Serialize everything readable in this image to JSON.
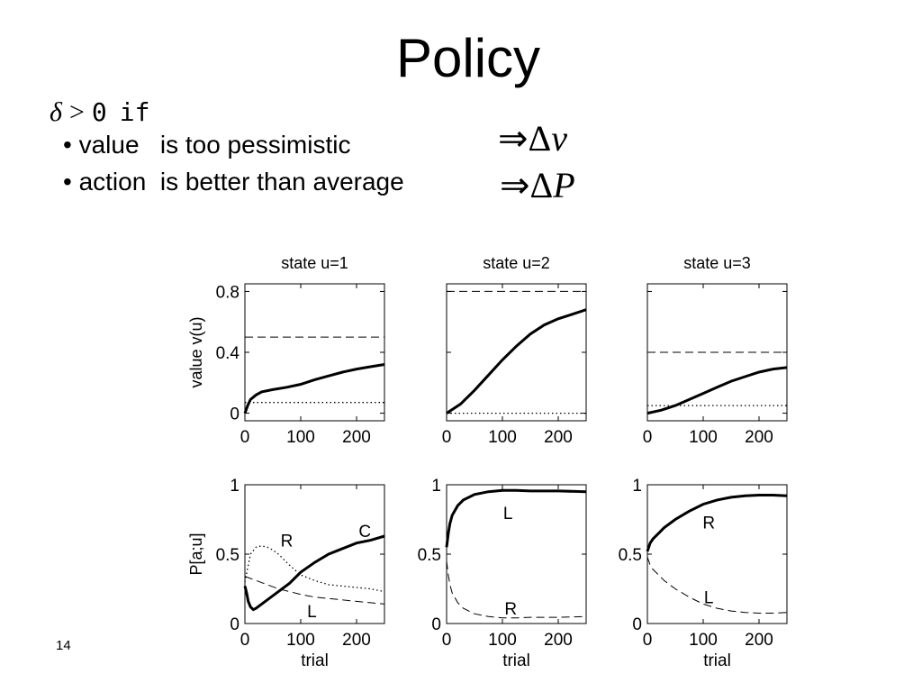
{
  "slide": {
    "title": "Policy",
    "condition": {
      "symbol": "δ",
      "relation": ">",
      "value": "0",
      "word": "if"
    },
    "bullets": [
      {
        "text": "• value   is too pessimistic",
        "implies": "⇒",
        "consequence_delta": "Δ",
        "consequence_var": "v"
      },
      {
        "text": "• action  is better than average",
        "implies": "⇒",
        "consequence_delta": "Δ",
        "consequence_var": "P"
      }
    ],
    "page_number": "14"
  },
  "chart_data": [
    {
      "type": "line",
      "title": "state u=1",
      "xlabel": "",
      "ylabel": "value v(u)",
      "xlim": [
        0,
        250
      ],
      "ylim": [
        -0.05,
        0.85
      ],
      "xticks": [
        "0",
        "100",
        "200"
      ],
      "yticks": [
        "0",
        "0.4",
        "0.8"
      ],
      "grid": false,
      "series": [
        {
          "style": "solid",
          "x": [
            0,
            5,
            10,
            20,
            30,
            50,
            75,
            100,
            125,
            150,
            175,
            200,
            225,
            250
          ],
          "y": [
            0,
            0.05,
            0.09,
            0.12,
            0.14,
            0.155,
            0.17,
            0.19,
            0.22,
            0.245,
            0.27,
            0.29,
            0.305,
            0.32
          ]
        },
        {
          "style": "dashed",
          "x": [
            0,
            250
          ],
          "y": [
            0.5,
            0.5
          ]
        },
        {
          "style": "dotted",
          "x": [
            0,
            250
          ],
          "y": [
            0.07,
            0.07
          ]
        }
      ],
      "annotations": []
    },
    {
      "type": "line",
      "title": "state u=2",
      "xlabel": "",
      "ylabel": "",
      "xlim": [
        0,
        250
      ],
      "ylim": [
        -0.05,
        0.85
      ],
      "xticks": [
        "0",
        "100",
        "200"
      ],
      "yticks": [],
      "grid": false,
      "series": [
        {
          "style": "solid",
          "x": [
            0,
            25,
            50,
            75,
            100,
            125,
            150,
            175,
            200,
            225,
            250
          ],
          "y": [
            0,
            0.06,
            0.15,
            0.25,
            0.35,
            0.44,
            0.52,
            0.58,
            0.62,
            0.65,
            0.68
          ]
        },
        {
          "style": "dashed",
          "x": [
            0,
            250
          ],
          "y": [
            0.8,
            0.8
          ]
        },
        {
          "style": "dotted",
          "x": [
            0,
            250
          ],
          "y": [
            0,
            0
          ]
        }
      ],
      "annotations": []
    },
    {
      "type": "line",
      "title": "state u=3",
      "xlabel": "",
      "ylabel": "",
      "xlim": [
        0,
        250
      ],
      "ylim": [
        -0.05,
        0.85
      ],
      "xticks": [
        "0",
        "100",
        "200"
      ],
      "yticks": [],
      "grid": false,
      "series": [
        {
          "style": "solid",
          "x": [
            0,
            25,
            50,
            75,
            100,
            125,
            150,
            175,
            200,
            225,
            250
          ],
          "y": [
            0,
            0.02,
            0.05,
            0.09,
            0.13,
            0.17,
            0.21,
            0.24,
            0.27,
            0.29,
            0.3
          ]
        },
        {
          "style": "dashed",
          "x": [
            0,
            250
          ],
          "y": [
            0.4,
            0.4
          ]
        },
        {
          "style": "dotted",
          "x": [
            0,
            250
          ],
          "y": [
            0.05,
            0.05
          ]
        }
      ],
      "annotations": []
    },
    {
      "type": "line",
      "title": "",
      "xlabel": "trial",
      "ylabel": "P[a;u]",
      "xlim": [
        0,
        250
      ],
      "ylim": [
        0,
        1
      ],
      "xticks": [
        "0",
        "100",
        "200"
      ],
      "yticks": [
        "0",
        "0.5",
        "1"
      ],
      "grid": false,
      "series": [
        {
          "style": "solid",
          "name": "C",
          "x": [
            0,
            3,
            6,
            10,
            15,
            20,
            30,
            40,
            60,
            80,
            100,
            125,
            150,
            175,
            200,
            225,
            250
          ],
          "y": [
            0.27,
            0.22,
            0.16,
            0.12,
            0.1,
            0.11,
            0.14,
            0.17,
            0.23,
            0.29,
            0.37,
            0.44,
            0.5,
            0.54,
            0.58,
            0.6,
            0.63
          ]
        },
        {
          "style": "dotted",
          "name": "R",
          "x": [
            0,
            10,
            20,
            30,
            40,
            50,
            60,
            80,
            100,
            125,
            150,
            175,
            200,
            225,
            250
          ],
          "y": [
            0.3,
            0.5,
            0.55,
            0.56,
            0.55,
            0.53,
            0.5,
            0.42,
            0.35,
            0.31,
            0.28,
            0.27,
            0.26,
            0.25,
            0.23
          ]
        },
        {
          "style": "dashed",
          "name": "L",
          "x": [
            0,
            20,
            40,
            60,
            80,
            100,
            125,
            150,
            175,
            200,
            225,
            250
          ],
          "y": [
            0.34,
            0.31,
            0.28,
            0.25,
            0.23,
            0.21,
            0.19,
            0.18,
            0.17,
            0.16,
            0.15,
            0.14
          ]
        }
      ],
      "annotations": [
        {
          "text": "R",
          "x": 75,
          "y": 0.6
        },
        {
          "text": "C",
          "x": 215,
          "y": 0.67
        },
        {
          "text": "L",
          "x": 120,
          "y": 0.09
        }
      ]
    },
    {
      "type": "line",
      "title": "",
      "xlabel": "trial",
      "ylabel": "",
      "xlim": [
        0,
        250
      ],
      "ylim": [
        0,
        1
      ],
      "xticks": [
        "0",
        "100",
        "200"
      ],
      "yticks": [
        "0",
        "0.5",
        "1"
      ],
      "grid": false,
      "series": [
        {
          "style": "solid",
          "name": "L",
          "x": [
            0,
            3,
            6,
            10,
            20,
            30,
            50,
            75,
            100,
            125,
            150,
            200,
            250
          ],
          "y": [
            0.55,
            0.65,
            0.72,
            0.78,
            0.85,
            0.89,
            0.93,
            0.95,
            0.96,
            0.96,
            0.955,
            0.955,
            0.95
          ]
        },
        {
          "style": "dashed",
          "name": "R",
          "x": [
            0,
            3,
            6,
            10,
            20,
            30,
            50,
            75,
            100,
            125,
            150,
            200,
            250
          ],
          "y": [
            0.45,
            0.35,
            0.28,
            0.22,
            0.15,
            0.11,
            0.07,
            0.05,
            0.04,
            0.04,
            0.045,
            0.045,
            0.05
          ]
        }
      ],
      "annotations": [
        {
          "text": "L",
          "x": 110,
          "y": 0.8
        },
        {
          "text": "R",
          "x": 115,
          "y": 0.11
        }
      ]
    },
    {
      "type": "line",
      "title": "",
      "xlabel": "trial",
      "ylabel": "",
      "xlim": [
        0,
        250
      ],
      "ylim": [
        0,
        1
      ],
      "xticks": [
        "0",
        "100",
        "200"
      ],
      "yticks": [
        "0",
        "0.5",
        "1"
      ],
      "grid": false,
      "series": [
        {
          "style": "solid",
          "name": "R",
          "x": [
            0,
            5,
            10,
            20,
            30,
            50,
            75,
            100,
            125,
            150,
            175,
            200,
            225,
            250
          ],
          "y": [
            0.52,
            0.58,
            0.61,
            0.65,
            0.69,
            0.75,
            0.81,
            0.86,
            0.89,
            0.91,
            0.92,
            0.925,
            0.925,
            0.92
          ]
        },
        {
          "style": "dashed",
          "name": "L",
          "x": [
            0,
            5,
            10,
            20,
            30,
            50,
            75,
            100,
            125,
            150,
            175,
            200,
            225,
            250
          ],
          "y": [
            0.48,
            0.42,
            0.39,
            0.35,
            0.31,
            0.25,
            0.19,
            0.14,
            0.11,
            0.09,
            0.08,
            0.075,
            0.075,
            0.08
          ]
        }
      ],
      "annotations": [
        {
          "text": "R",
          "x": 110,
          "y": 0.73
        },
        {
          "text": "L",
          "x": 110,
          "y": 0.19
        }
      ]
    }
  ]
}
